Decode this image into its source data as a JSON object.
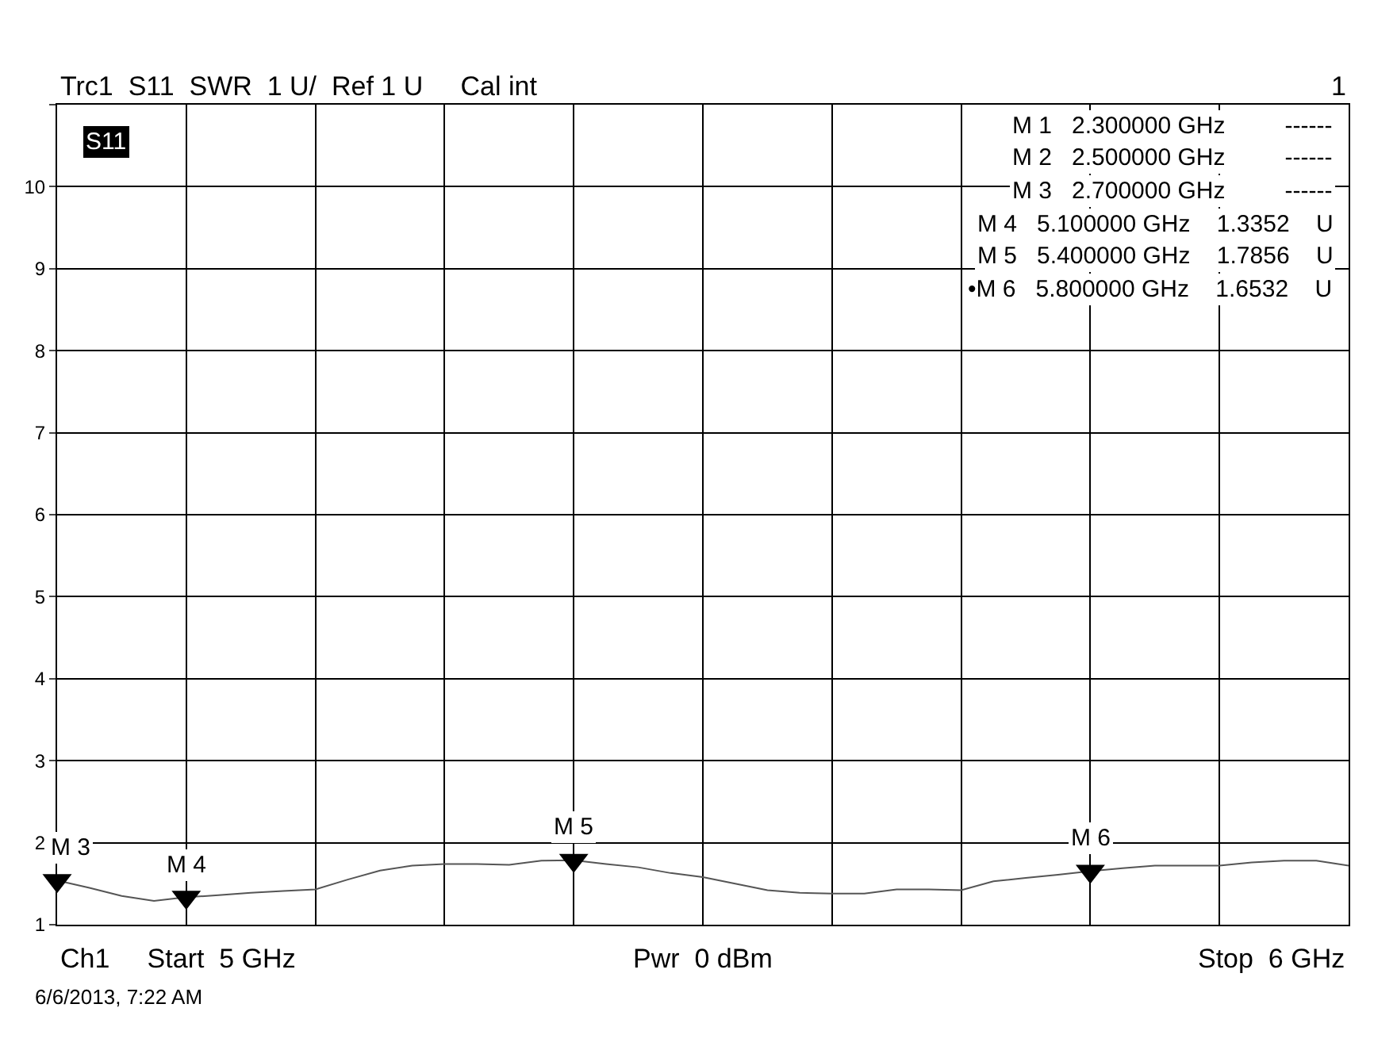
{
  "chart_data": {
    "type": "line",
    "title": "Trc1  S11  SWR  1 U/  Ref 1 U     Cal int",
    "subtitle": "1",
    "categories": [
      null,
      null,
      null,
      null,
      null,
      null,
      null,
      null,
      null,
      null,
      null,
      null,
      null,
      null,
      null,
      null,
      null,
      null,
      null,
      null,
      null,
      null,
      null,
      null,
      null,
      null,
      null,
      null,
      null,
      null,
      null,
      null,
      null,
      null,
      null,
      null,
      null,
      null,
      null,
      null,
      null
    ],
    "series": [
      {
        "color": "#555555",
        "values": [
          1.54,
          1.45,
          1.35,
          1.29,
          1.3352,
          1.36,
          1.39,
          1.41,
          1.43,
          1.55,
          1.66,
          1.72,
          1.74,
          1.74,
          1.73,
          1.78,
          1.7856,
          1.74,
          1.7,
          1.63,
          1.58,
          1.5,
          1.42,
          1.39,
          1.38,
          1.38,
          1.43,
          1.43,
          1.42,
          1.53,
          1.57,
          1.61,
          1.6532,
          1.69,
          1.72,
          1.72,
          1.72,
          1.76,
          1.78,
          1.78,
          1.72
        ]
      },
      {
        "type": "scatter",
        "marker": "triangle",
        "color": "#000000",
        "values": [
          1.54,
          null,
          null,
          null,
          1.3352,
          null,
          null,
          null,
          null,
          null,
          null,
          null,
          null,
          null,
          null,
          null,
          1.7856,
          null,
          null,
          null,
          null,
          null,
          null,
          null,
          null,
          null,
          null,
          null,
          null,
          null,
          null,
          null,
          1.6532,
          null,
          null,
          null,
          null,
          null,
          null,
          null,
          null
        ],
        "value_labels": [
          "M 3",
          null,
          null,
          null,
          "M 4",
          null,
          null,
          null,
          null,
          null,
          null,
          null,
          null,
          null,
          null,
          null,
          "M 5",
          null,
          null,
          null,
          null,
          null,
          null,
          null,
          null,
          null,
          null,
          null,
          null,
          null,
          null,
          null,
          "M 6",
          null,
          null,
          null,
          null,
          null,
          null,
          null,
          null
        ]
      }
    ],
    "ylim": [
      1,
      11
    ],
    "yticks": [
      1,
      2,
      3,
      4,
      5,
      6,
      7,
      8,
      9,
      10,
      {
        "value": 11,
        "label": null
      }
    ],
    "grid": true,
    "annotations": [
      "S11",
      "M 1   2.300000 GHz         ------",
      "M 2   2.500000 GHz         ------",
      "M 3   2.700000 GHz         ------",
      "M 4   5.100000 GHz    1.3352    U",
      "M 5   5.400000 GHz    1.7856    U",
      "•M 6   5.800000 GHz    1.6532    U",
      "Ch1     Start  5 GHz",
      "Pwr  0 dBm",
      "Stop  6 GHz",
      "6/6/2013, 7:22 AM"
    ]
  }
}
